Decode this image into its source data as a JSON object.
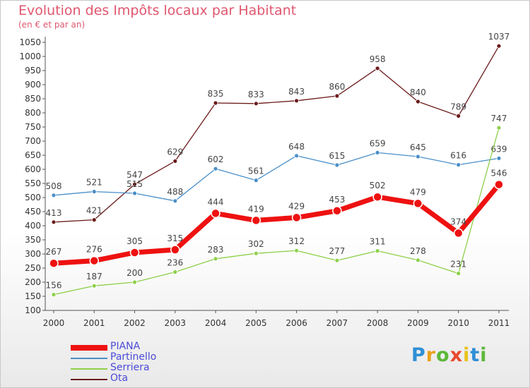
{
  "title": "Evolution des Impôts locaux par Habitant",
  "subtitle": "(en € et par an)",
  "logo": {
    "text": [
      "P",
      "r",
      "o",
      "x",
      "i",
      "t",
      "i"
    ],
    "colors": [
      "#2f8fd6",
      "#e8a21b",
      "#5cb83a",
      "#e84a2e",
      "#e8c21b",
      "#2f8fd6",
      "#5cb83a"
    ]
  },
  "chart_data": {
    "type": "line",
    "x": [
      "2000",
      "2001",
      "2002",
      "2003",
      "2004",
      "2005",
      "2006",
      "2007",
      "2008",
      "2009",
      "2010",
      "2011"
    ],
    "ylim": [
      100,
      1050
    ],
    "yticks": [
      100,
      150,
      200,
      250,
      300,
      350,
      400,
      450,
      500,
      550,
      600,
      650,
      700,
      750,
      800,
      850,
      900,
      950,
      1000,
      1050
    ],
    "grid": false,
    "legend_position": "bottom-left",
    "series": [
      {
        "name": "Ota",
        "color": "#6b1a1a",
        "values": [
          413,
          421,
          547,
          629,
          835,
          833,
          843,
          860,
          958,
          840,
          789,
          1037
        ]
      },
      {
        "name": "Partinello",
        "color": "#4a8fc8",
        "values": [
          508,
          521,
          515,
          488,
          602,
          561,
          648,
          615,
          659,
          645,
          616,
          639
        ]
      },
      {
        "name": "Serriera",
        "color": "#8ed04a",
        "values": [
          156,
          187,
          200,
          236,
          283,
          302,
          312,
          277,
          311,
          278,
          231,
          747
        ]
      },
      {
        "name": "PIANA",
        "color": "#ee1111",
        "values": [
          267,
          276,
          305,
          315,
          444,
          419,
          429,
          453,
          502,
          479,
          374,
          546
        ]
      }
    ],
    "legend_order": [
      "PIANA",
      "Partinello",
      "Serriera",
      "Ota"
    ]
  }
}
